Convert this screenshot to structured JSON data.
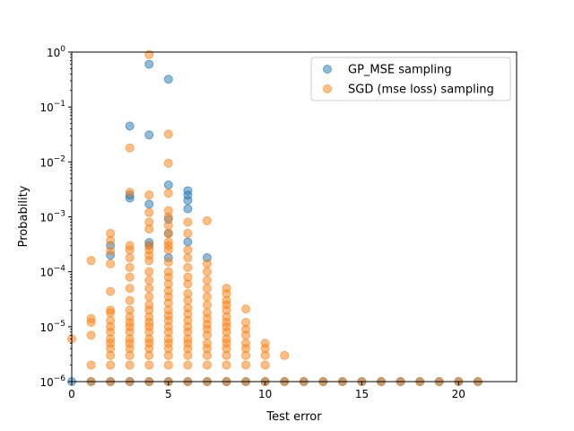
{
  "chart_data": {
    "type": "scatter",
    "title": "",
    "xlabel": "Test error",
    "ylabel": "Probability",
    "xlim": [
      0,
      23
    ],
    "ylim": [
      1e-06,
      1.0
    ],
    "yscale": "log",
    "x_ticks": [
      0,
      5,
      10,
      15,
      20
    ],
    "x_tick_labels": [
      "0",
      "5",
      "10",
      "15",
      "20"
    ],
    "y_ticks": [
      1e-06,
      1e-05,
      0.0001,
      0.001,
      0.01,
      0.1,
      1
    ],
    "y_tick_labels": [
      {
        "base": "10",
        "exp": "−6"
      },
      {
        "base": "10",
        "exp": "−5"
      },
      {
        "base": "10",
        "exp": "−4"
      },
      {
        "base": "10",
        "exp": "−3"
      },
      {
        "base": "10",
        "exp": "−2"
      },
      {
        "base": "10",
        "exp": "−1"
      },
      {
        "base": "10",
        "exp": "0"
      }
    ],
    "grid": false,
    "legend_position": "top-right",
    "series": [
      {
        "name": "GP_MSE sampling",
        "color": "#1f77b4",
        "points": [
          [
            0,
            1e-06
          ],
          [
            1,
            1e-06
          ],
          [
            2,
            0.0003
          ],
          [
            2,
            0.0002
          ],
          [
            2,
            1e-06
          ],
          [
            3,
            0.045
          ],
          [
            3,
            0.0025
          ],
          [
            3,
            0.0022
          ],
          [
            3,
            1e-06
          ],
          [
            4,
            0.6
          ],
          [
            4,
            0.031
          ],
          [
            4,
            0.0017
          ],
          [
            4,
            0.00034
          ],
          [
            4,
            0.0003
          ],
          [
            4,
            1e-06
          ],
          [
            5,
            0.32
          ],
          [
            5,
            0.0038
          ],
          [
            5,
            0.0009
          ],
          [
            5,
            0.0005
          ],
          [
            5,
            0.00018
          ],
          [
            5,
            1e-06
          ],
          [
            6,
            0.003
          ],
          [
            6,
            0.0025
          ],
          [
            6,
            0.002
          ],
          [
            6,
            0.0014
          ],
          [
            6,
            0.00035
          ],
          [
            6,
            1e-06
          ],
          [
            7,
            0.00018
          ],
          [
            7,
            1e-06
          ],
          [
            8,
            1e-06
          ],
          [
            9,
            1e-06
          ],
          [
            10,
            1e-06
          ],
          [
            11,
            1e-06
          ],
          [
            12,
            1e-06
          ],
          [
            13,
            1e-06
          ],
          [
            14,
            1e-06
          ],
          [
            15,
            1e-06
          ],
          [
            16,
            1e-06
          ],
          [
            17,
            1e-06
          ],
          [
            18,
            1e-06
          ],
          [
            19,
            1e-06
          ],
          [
            20,
            1e-06
          ],
          [
            21,
            1e-06
          ]
        ]
      },
      {
        "name": "SGD (mse loss) sampling",
        "color": "#ff7f0e",
        "points": [
          [
            0,
            6e-06
          ],
          [
            1,
            0.00016
          ],
          [
            1,
            1.4e-05
          ],
          [
            1,
            1.2e-05
          ],
          [
            1,
            7e-06
          ],
          [
            1,
            2e-06
          ],
          [
            1,
            1e-06
          ],
          [
            2,
            0.0005
          ],
          [
            2,
            0.00037
          ],
          [
            2,
            0.00024
          ],
          [
            2,
            0.00014
          ],
          [
            2,
            4.4e-05
          ],
          [
            2,
            2e-05
          ],
          [
            2,
            1.8e-05
          ],
          [
            2,
            1.3e-05
          ],
          [
            2,
            1e-05
          ],
          [
            2,
            8e-06
          ],
          [
            2,
            6e-06
          ],
          [
            2,
            5e-06
          ],
          [
            2,
            4e-06
          ],
          [
            2,
            3e-06
          ],
          [
            2,
            2e-06
          ],
          [
            2,
            1e-06
          ],
          [
            3,
            0.018
          ],
          [
            3,
            0.0028
          ],
          [
            3,
            0.0003
          ],
          [
            3,
            0.00025
          ],
          [
            3,
            0.00018
          ],
          [
            3,
            0.00012
          ],
          [
            3,
            8e-05
          ],
          [
            3,
            5e-05
          ],
          [
            3,
            3e-05
          ],
          [
            3,
            2e-05
          ],
          [
            3,
            1.5e-05
          ],
          [
            3,
            1.2e-05
          ],
          [
            3,
            1e-05
          ],
          [
            3,
            8e-06
          ],
          [
            3,
            6e-06
          ],
          [
            3,
            5e-06
          ],
          [
            3,
            4e-06
          ],
          [
            3,
            3e-06
          ],
          [
            3,
            2e-06
          ],
          [
            3,
            1e-06
          ],
          [
            4,
            0.9
          ],
          [
            4,
            0.0025
          ],
          [
            4,
            0.0012
          ],
          [
            4,
            0.0008
          ],
          [
            4,
            0.0006
          ],
          [
            4,
            0.0003
          ],
          [
            4,
            0.00025
          ],
          [
            4,
            0.0002
          ],
          [
            4,
            0.00016
          ],
          [
            4,
            0.0001
          ],
          [
            4,
            7e-05
          ],
          [
            4,
            5e-05
          ],
          [
            4,
            3.5e-05
          ],
          [
            4,
            2.5e-05
          ],
          [
            4,
            2e-05
          ],
          [
            4,
            1.5e-05
          ],
          [
            4,
            1.2e-05
          ],
          [
            4,
            1e-05
          ],
          [
            4,
            8e-06
          ],
          [
            4,
            6e-06
          ],
          [
            4,
            5e-06
          ],
          [
            4,
            4e-06
          ],
          [
            4,
            3e-06
          ],
          [
            4,
            2e-06
          ],
          [
            4,
            1e-06
          ],
          [
            5,
            0.032
          ],
          [
            5,
            0.0095
          ],
          [
            5,
            0.0027
          ],
          [
            5,
            0.0013
          ],
          [
            5,
            0.001
          ],
          [
            5,
            0.0007
          ],
          [
            5,
            0.0005
          ],
          [
            5,
            0.00035
          ],
          [
            5,
            0.0003
          ],
          [
            5,
            0.00025
          ],
          [
            5,
            0.00015
          ],
          [
            5,
            0.0001
          ],
          [
            5,
            8e-05
          ],
          [
            5,
            6e-05
          ],
          [
            5,
            4.5e-05
          ],
          [
            5,
            3.5e-05
          ],
          [
            5,
            2.7e-05
          ],
          [
            5,
            2e-05
          ],
          [
            5,
            1.6e-05
          ],
          [
            5,
            1.3e-05
          ],
          [
            5,
            1e-05
          ],
          [
            5,
            8e-06
          ],
          [
            5,
            6e-06
          ],
          [
            5,
            5e-06
          ],
          [
            5,
            4e-06
          ],
          [
            5,
            3e-06
          ],
          [
            5,
            2e-06
          ],
          [
            5,
            1e-06
          ],
          [
            6,
            0.0008
          ],
          [
            6,
            0.0005
          ],
          [
            6,
            0.00025
          ],
          [
            6,
            0.00018
          ],
          [
            6,
            0.00012
          ],
          [
            6,
            8e-05
          ],
          [
            6,
            6e-05
          ],
          [
            6,
            4e-05
          ],
          [
            6,
            3e-05
          ],
          [
            6,
            2.2e-05
          ],
          [
            6,
            1.7e-05
          ],
          [
            6,
            1.3e-05
          ],
          [
            6,
            1e-05
          ],
          [
            6,
            8e-06
          ],
          [
            6,
            6e-06
          ],
          [
            6,
            5e-06
          ],
          [
            6,
            4e-06
          ],
          [
            6,
            3e-06
          ],
          [
            6,
            2e-06
          ],
          [
            6,
            1e-06
          ],
          [
            7,
            0.00085
          ],
          [
            7,
            0.00014
          ],
          [
            7,
            0.0001
          ],
          [
            7,
            7e-05
          ],
          [
            7,
            5e-05
          ],
          [
            7,
            3.5e-05
          ],
          [
            7,
            2.5e-05
          ],
          [
            7,
            1.8e-05
          ],
          [
            7,
            1.4e-05
          ],
          [
            7,
            1.1e-05
          ],
          [
            7,
            9e-06
          ],
          [
            7,
            7e-06
          ],
          [
            7,
            5e-06
          ],
          [
            7,
            4e-06
          ],
          [
            7,
            3e-06
          ],
          [
            7,
            2e-06
          ],
          [
            7,
            1e-06
          ],
          [
            8,
            5e-05
          ],
          [
            8,
            4e-05
          ],
          [
            8,
            3e-05
          ],
          [
            8,
            2.5e-05
          ],
          [
            8,
            2e-05
          ],
          [
            8,
            1.5e-05
          ],
          [
            8,
            1.2e-05
          ],
          [
            8,
            1e-05
          ],
          [
            8,
            8e-06
          ],
          [
            8,
            6e-06
          ],
          [
            8,
            5e-06
          ],
          [
            8,
            4e-06
          ],
          [
            8,
            3e-06
          ],
          [
            8,
            2e-06
          ],
          [
            8,
            1e-06
          ],
          [
            9,
            2.1e-05
          ],
          [
            9,
            1.2e-05
          ],
          [
            9,
            9e-06
          ],
          [
            9,
            7e-06
          ],
          [
            9,
            5e-06
          ],
          [
            9,
            4e-06
          ],
          [
            9,
            3e-06
          ],
          [
            9,
            2e-06
          ],
          [
            9,
            1e-06
          ],
          [
            10,
            5e-06
          ],
          [
            10,
            4e-06
          ],
          [
            10,
            3e-06
          ],
          [
            10,
            2e-06
          ],
          [
            10,
            1e-06
          ],
          [
            11,
            3e-06
          ],
          [
            11,
            1e-06
          ],
          [
            12,
            1e-06
          ],
          [
            13,
            1e-06
          ],
          [
            14,
            1e-06
          ],
          [
            15,
            1e-06
          ],
          [
            16,
            1e-06
          ],
          [
            17,
            1e-06
          ],
          [
            18,
            1e-06
          ],
          [
            19,
            1e-06
          ],
          [
            20,
            1e-06
          ],
          [
            21,
            1e-06
          ]
        ]
      }
    ]
  }
}
